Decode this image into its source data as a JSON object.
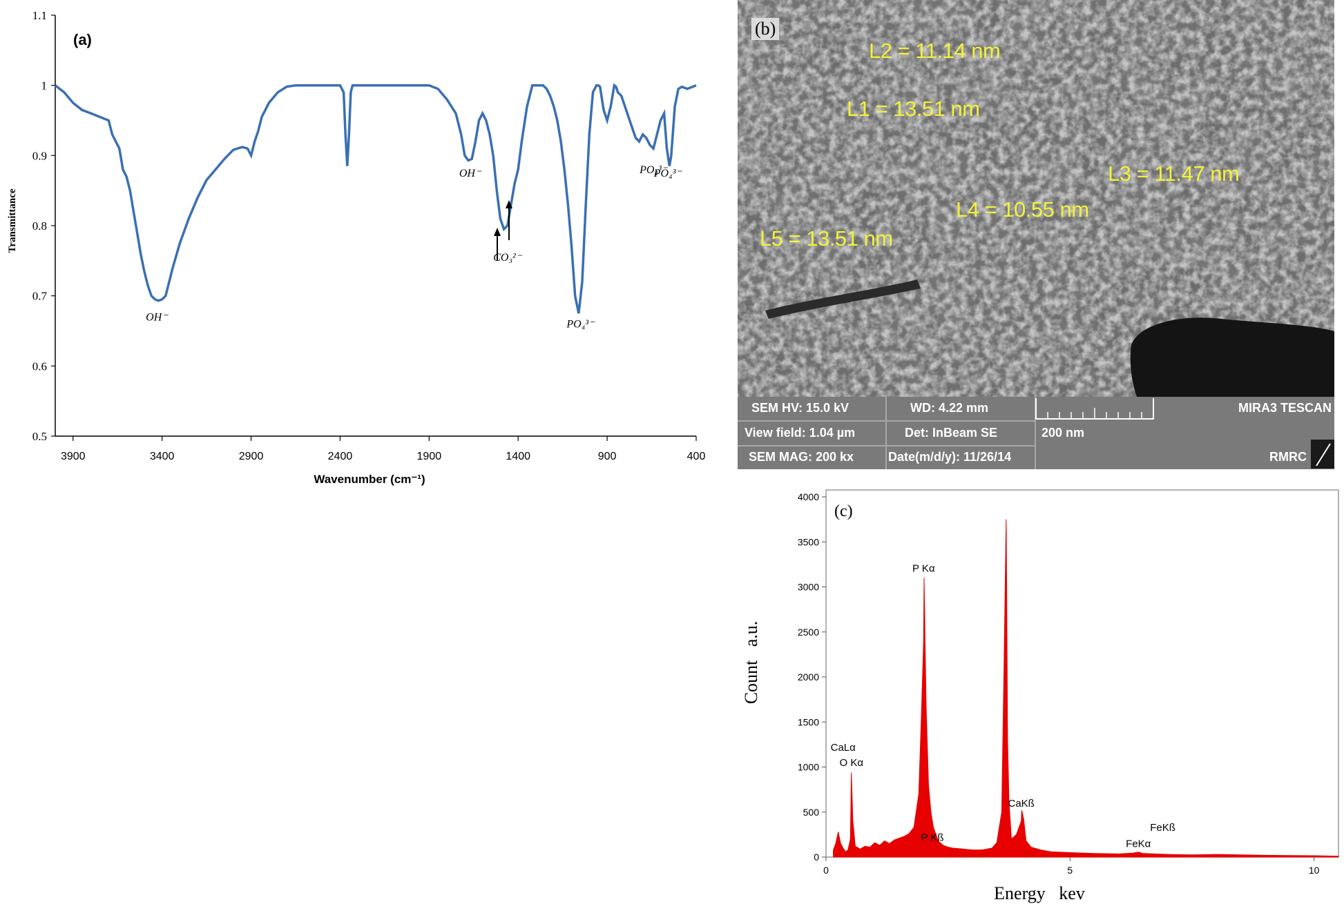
{
  "panels": {
    "a": "(a)",
    "b": "(b)",
    "c": "(c)"
  },
  "chart_data": [
    {
      "type": "line",
      "panel": "(a)",
      "xlabel": "Wavenumber (cm⁻¹)",
      "ylabel": "Transmittance",
      "xlim": [
        4000,
        400
      ],
      "x_reversed": true,
      "ylim": [
        0.5,
        1.1
      ],
      "xticks": [
        "3900",
        "3400",
        "2900",
        "2400",
        "1900",
        "1400",
        "900",
        "400"
      ],
      "yticks": [
        "0.5",
        "0.6",
        "0.7",
        "0.8",
        "0.9",
        "1",
        "1.1"
      ],
      "line_color": "#3a6fb3",
      "series": [
        {
          "x": [
            4000,
            3950,
            3900,
            3850,
            3800,
            3750,
            3700,
            3680,
            3660,
            3640,
            3620,
            3600,
            3580,
            3560,
            3540,
            3520,
            3500,
            3480,
            3460,
            3440,
            3420,
            3400,
            3380,
            3360,
            3340,
            3300,
            3250,
            3200,
            3150,
            3100,
            3050,
            3000,
            2950,
            2920,
            2900,
            2880,
            2860,
            2840,
            2820,
            2800,
            2750,
            2700,
            2650,
            2600,
            2550,
            2500,
            2450,
            2400,
            2380,
            2370,
            2360,
            2350,
            2340,
            2330,
            2300,
            2250,
            2200,
            2100,
            2000,
            1900,
            1850,
            1800,
            1750,
            1720,
            1700,
            1680,
            1660,
            1640,
            1620,
            1600,
            1580,
            1560,
            1540,
            1520,
            1500,
            1480,
            1460,
            1440,
            1420,
            1400,
            1380,
            1350,
            1320,
            1300,
            1280,
            1260,
            1240,
            1220,
            1200,
            1180,
            1160,
            1140,
            1120,
            1100,
            1080,
            1060,
            1040,
            1020,
            1000,
            980,
            960,
            950,
            940,
            920,
            900,
            880,
            860,
            850,
            840,
            820,
            800,
            780,
            760,
            740,
            720,
            700,
            680,
            660,
            640,
            620,
            600,
            580,
            565,
            550,
            540,
            520,
            500,
            480,
            450,
            420,
            400
          ],
          "y": [
            1.0,
            0.99,
            0.975,
            0.965,
            0.96,
            0.955,
            0.95,
            0.93,
            0.92,
            0.91,
            0.88,
            0.87,
            0.85,
            0.82,
            0.79,
            0.76,
            0.735,
            0.715,
            0.7,
            0.695,
            0.693,
            0.695,
            0.7,
            0.72,
            0.74,
            0.775,
            0.81,
            0.84,
            0.865,
            0.88,
            0.895,
            0.908,
            0.912,
            0.91,
            0.9,
            0.92,
            0.935,
            0.955,
            0.965,
            0.975,
            0.99,
            0.998,
            1.0,
            1.0,
            1.0,
            1.0,
            1.0,
            1.0,
            0.99,
            0.93,
            0.885,
            0.93,
            0.99,
            1.0,
            1.0,
            1.0,
            1.0,
            1.0,
            1.0,
            1.0,
            0.995,
            0.98,
            0.96,
            0.93,
            0.9,
            0.893,
            0.895,
            0.92,
            0.95,
            0.96,
            0.95,
            0.93,
            0.9,
            0.85,
            0.81,
            0.795,
            0.8,
            0.83,
            0.86,
            0.88,
            0.92,
            0.97,
            1.0,
            1.0,
            1.0,
            1.0,
            0.995,
            0.985,
            0.97,
            0.95,
            0.92,
            0.88,
            0.83,
            0.77,
            0.7,
            0.675,
            0.72,
            0.83,
            0.93,
            0.99,
            1.0,
            1.0,
            0.998,
            0.965,
            0.95,
            0.97,
            1.0,
            0.998,
            0.99,
            0.985,
            0.97,
            0.955,
            0.94,
            0.925,
            0.92,
            0.93,
            0.925,
            0.915,
            0.91,
            0.93,
            0.95,
            0.96,
            0.91,
            0.885,
            0.9,
            0.97,
            0.995,
            0.998,
            0.995,
            0.998,
            1.0
          ]
        }
      ],
      "annotations": [
        {
          "text": "OH⁻",
          "x": 3430,
          "y": 0.665
        },
        {
          "text": "OH⁻",
          "x": 1670,
          "y": 0.87
        },
        {
          "text": "CO₃²⁻",
          "x": 1460,
          "y": 0.75
        },
        {
          "text": "PO₄³⁻",
          "x": 1050,
          "y": 0.655
        },
        {
          "text": "PO₄³⁻",
          "x": 640,
          "y": 0.875
        },
        {
          "text": "PO₄³⁻",
          "x": 560,
          "y": 0.87
        }
      ]
    },
    {
      "type": "bar",
      "panel": "(c)",
      "xlabel": "Energy   kev",
      "ylabel": "Count   a.u.",
      "xlim": [
        0,
        10.5
      ],
      "ylim": [
        0,
        4000
      ],
      "xticks": [
        "0",
        "5",
        "10"
      ],
      "yticks": [
        "0",
        "500",
        "1000",
        "1500",
        "2000",
        "2500",
        "3000",
        "3500",
        "4000"
      ],
      "bar_color": "#e60000",
      "series": [
        {
          "x": [
            0.15,
            0.2,
            0.25,
            0.3,
            0.35,
            0.4,
            0.45,
            0.5,
            0.52,
            0.55,
            0.6,
            0.7,
            0.8,
            0.9,
            1.0,
            1.1,
            1.2,
            1.3,
            1.4,
            1.5,
            1.6,
            1.7,
            1.8,
            1.9,
            1.95,
            2.0,
            2.01,
            2.05,
            2.1,
            2.15,
            2.2,
            2.3,
            2.4,
            2.5,
            2.6,
            2.8,
            3.0,
            3.2,
            3.4,
            3.5,
            3.6,
            3.65,
            3.69,
            3.7,
            3.72,
            3.75,
            3.8,
            3.9,
            4.0,
            4.01,
            4.05,
            4.1,
            4.2,
            4.4,
            4.6,
            5.0,
            5.5,
            6.0,
            6.3,
            6.4,
            6.5,
            7.0,
            7.5,
            8.0,
            8.5,
            9.0,
            9.5,
            10.0,
            10.5
          ],
          "y": [
            80,
            150,
            280,
            150,
            100,
            60,
            80,
            200,
            940,
            400,
            120,
            90,
            120,
            110,
            160,
            130,
            180,
            150,
            190,
            210,
            230,
            260,
            330,
            700,
            1500,
            2400,
            3100,
            1700,
            800,
            500,
            330,
            180,
            130,
            110,
            100,
            90,
            80,
            80,
            100,
            160,
            500,
            2200,
            3750,
            3100,
            1300,
            600,
            200,
            250,
            400,
            520,
            420,
            180,
            110,
            80,
            60,
            50,
            40,
            35,
            45,
            55,
            40,
            30,
            25,
            30,
            25,
            20,
            18,
            15,
            10
          ]
        }
      ],
      "annotations": [
        {
          "text": "CaLα",
          "x": 0.35,
          "y": 1180
        },
        {
          "text": "O Kα",
          "x": 0.52,
          "y": 1010
        },
        {
          "text": "P Kα",
          "x": 2.0,
          "y": 3170
        },
        {
          "text": "P Kß",
          "x": 2.18,
          "y": 180
        },
        {
          "text": "CaKß",
          "x": 4.0,
          "y": 560
        },
        {
          "text": "FeKß",
          "x": 6.9,
          "y": 290
        },
        {
          "text": "FeKα",
          "x": 6.4,
          "y": 110
        }
      ]
    }
  ],
  "sem": {
    "labels": [
      "L2 = 11.14 nm",
      "L1 = 13.51 nm",
      "L3 = 11.47 nm",
      "L4 = 10.55 nm",
      "L5 = 13.51 nm"
    ],
    "info": {
      "hv": "SEM HV: 15.0 kV",
      "wd": "WD: 4.22 mm",
      "view_field": "View field: 1.04 µm",
      "det": "Det: InBeam SE",
      "mag": "SEM MAG: 200 kx",
      "date": "Date(m/d/y): 11/26/14",
      "scale": "200 nm",
      "brand": "MIRA3 TESCAN",
      "lab": "RMRC"
    }
  }
}
